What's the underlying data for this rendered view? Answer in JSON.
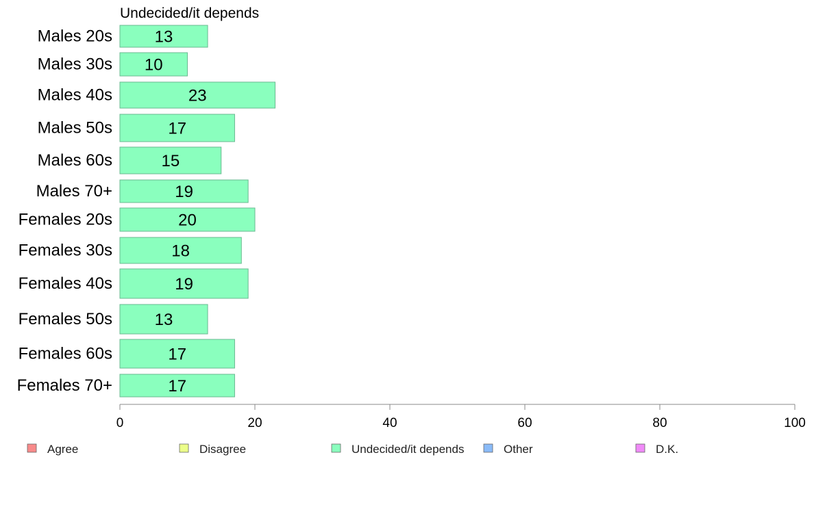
{
  "chart_data": {
    "type": "bar",
    "orientation": "horizontal",
    "title": "Undecided/it depends",
    "categories": [
      "Males 20s",
      "Males 30s",
      "Males 40s",
      "Males 50s",
      "Males 60s",
      "Males 70+",
      "Females 20s",
      "Females 30s",
      "Females 40s",
      "Females 50s",
      "Females 60s",
      "Females 70+"
    ],
    "values": [
      13,
      10,
      23,
      17,
      15,
      19,
      20,
      18,
      19,
      13,
      17,
      17
    ],
    "series_name": "Undecided/it depends",
    "xlim": [
      0,
      100
    ],
    "xticks": [
      0,
      20,
      40,
      60,
      80,
      100
    ],
    "grid": false,
    "legend_position": "bottom",
    "legend": [
      {
        "label": "Agree",
        "color": "#f88a8a"
      },
      {
        "label": "Disagree",
        "color": "#ecff8a"
      },
      {
        "label": "Undecided/it depends",
        "color": "#8affbe"
      },
      {
        "label": "Other",
        "color": "#8abbf8"
      },
      {
        "label": "D.K.",
        "color": "#f08af8"
      }
    ],
    "bar_color": "#8affbe",
    "bar_stroke": "#6ab890"
  }
}
